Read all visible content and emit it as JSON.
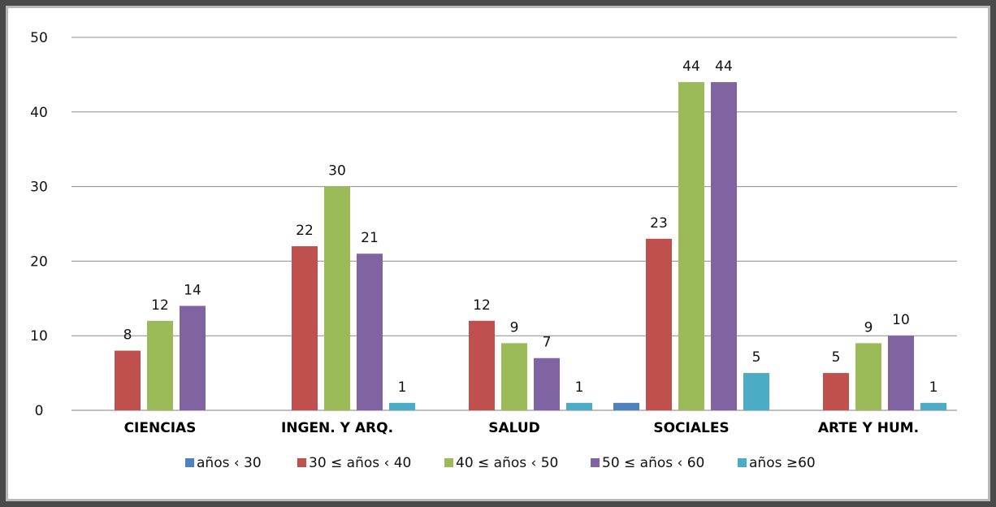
{
  "chart_data": {
    "type": "bar",
    "categories": [
      "CIENCIAS",
      "INGEN. Y ARQ.",
      "SALUD",
      "SOCIALES",
      "ARTE Y HUM."
    ],
    "series": [
      {
        "name": "años ‹ 30",
        "color": "#4f81bd",
        "values": [
          0,
          0,
          0,
          1,
          0
        ]
      },
      {
        "name": "30 ≤ años ‹ 40",
        "color": "#c0504d",
        "values": [
          8,
          22,
          12,
          23,
          5
        ]
      },
      {
        "name": "40 ≤ años ‹ 50",
        "color": "#9bbb59",
        "values": [
          12,
          30,
          9,
          44,
          9
        ]
      },
      {
        "name": "50 ≤ años ‹ 60",
        "color": "#8064a2",
        "values": [
          14,
          21,
          7,
          44,
          10
        ]
      },
      {
        "name": "años ≥60",
        "color": "#4bacc6",
        "values": [
          0,
          1,
          1,
          5,
          1
        ]
      }
    ],
    "data_labels_shown": [
      [
        false,
        false,
        false,
        false,
        false
      ],
      [
        true,
        true,
        true,
        true,
        true
      ],
      [
        true,
        true,
        true,
        true,
        true
      ],
      [
        true,
        true,
        true,
        true,
        true
      ],
      [
        false,
        true,
        true,
        true,
        true
      ]
    ],
    "yticks": [
      0,
      10,
      20,
      30,
      40,
      50
    ],
    "ylim": [
      0,
      50
    ],
    "title": "",
    "xlabel": "",
    "ylabel": "",
    "grid": true,
    "legend_position": "bottom"
  }
}
